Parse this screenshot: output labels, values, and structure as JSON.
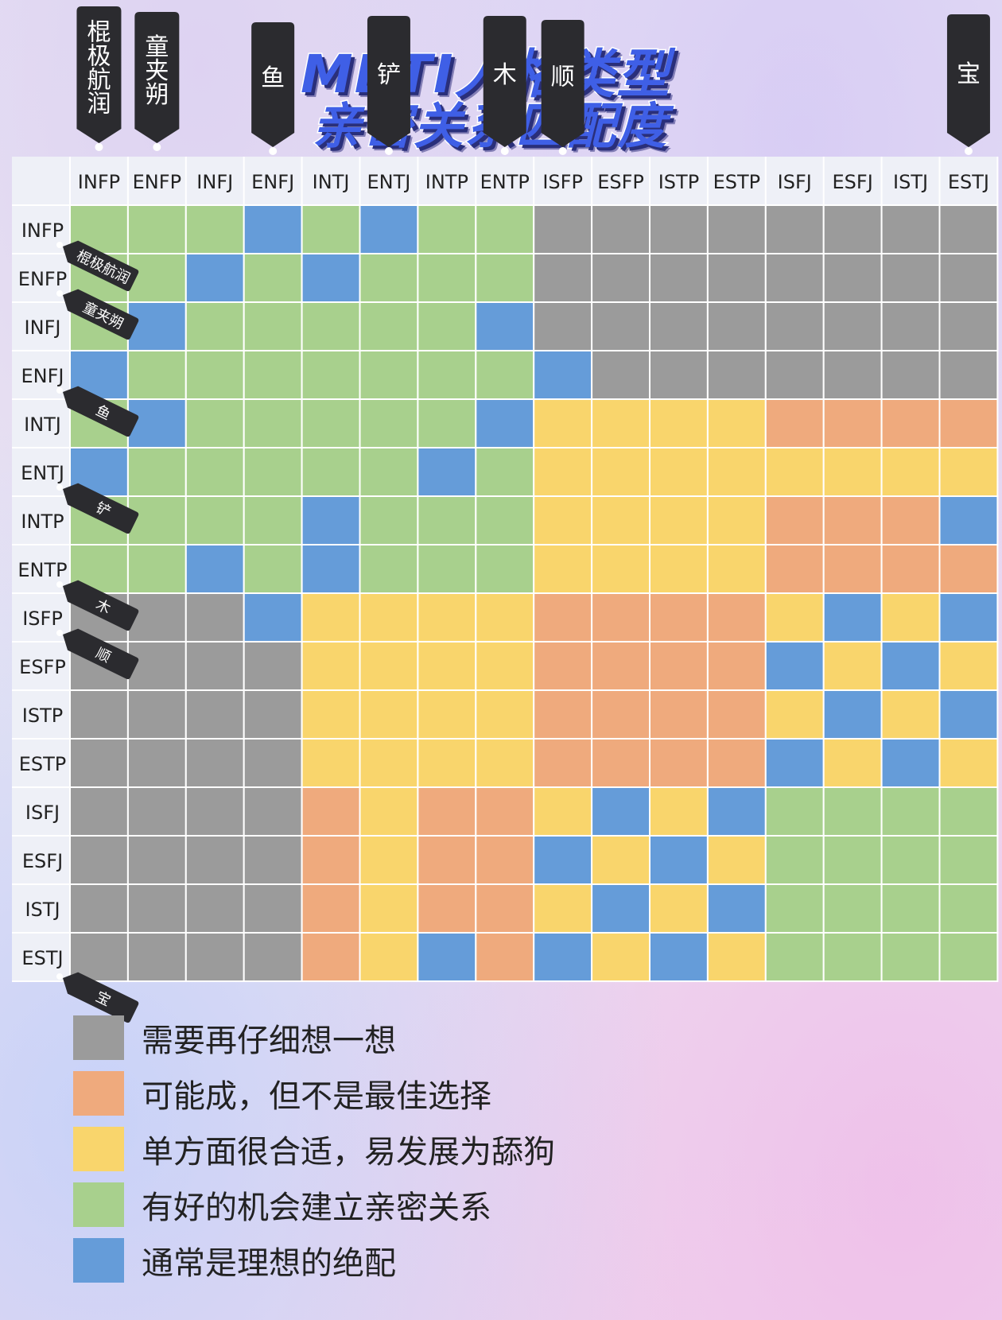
{
  "title": {
    "line1": "MBTI人格类型",
    "line2": "亲密关系匹配度"
  },
  "colors": {
    "G": "#9b9b9b",
    "O": "#efaa7d",
    "Y": "#f9d56c",
    "N": "#a8d08d",
    "B": "#659cd9"
  },
  "chart_data": {
    "type": "heatmap",
    "columns": [
      "INFP",
      "ENFP",
      "INFJ",
      "ENFJ",
      "INTJ",
      "ENTJ",
      "INTP",
      "ENTP",
      "ISFP",
      "ESFP",
      "ISTP",
      "ESTP",
      "ISFJ",
      "ESFJ",
      "ISTJ",
      "ESTJ"
    ],
    "rows": [
      "INFP",
      "ENFP",
      "INFJ",
      "ENFJ",
      "INTJ",
      "ENTJ",
      "INTP",
      "ENTP",
      "ISFP",
      "ESFP",
      "ISTP",
      "ESTP",
      "ISFJ",
      "ESFJ",
      "ISTJ",
      "ESTJ"
    ],
    "cells": [
      "NNNBNBNNGGGGGGGG",
      "NNBNBNNNGGGGGGGG",
      "NBNNNNNBGGGGGGGG",
      "BNNNNNNNBGGGGGGG",
      "NBNNNNNBYYYYOOOO",
      "BNNNNNBNYYYYYYYY",
      "NNNNBNNNYYYYOOOB",
      "NNBNBNNNYYYYOOOO",
      "GGGBYYYYOOOOYBYB",
      "GGGGYYYYOOOOBYBY",
      "GGGGYYYYOOOOYBYB",
      "GGGGYYYYOOOOBYBY",
      "GGGGOYOOYBYBNNNN",
      "GGGGOYOOBYBYNNNN",
      "GGGGOYOOYBYBNNNN",
      "GGGGOYBOBYBYNNNN"
    ],
    "legend": [
      {
        "code": "G",
        "label": "需要再仔细想一想"
      },
      {
        "code": "O",
        "label": "可能成，但不是最佳选择"
      },
      {
        "code": "Y",
        "label": "单方面很合适，易发展为舔狗"
      },
      {
        "code": "N",
        "label": "有好的机会建立亲密关系"
      },
      {
        "code": "B",
        "label": "通常是理想的绝配"
      }
    ]
  },
  "annotations": {
    "column_tags": [
      {
        "col": 0,
        "text": "棍极航润"
      },
      {
        "col": 1,
        "text": "童夹朔"
      },
      {
        "col": 3,
        "text": "鱼"
      },
      {
        "col": 5,
        "text": "铲"
      },
      {
        "col": 7,
        "text": "木"
      },
      {
        "col": 8,
        "text": "顺"
      },
      {
        "col": 15,
        "text": "宝"
      }
    ],
    "row_tags": [
      {
        "row": 0,
        "text": "棍极航润"
      },
      {
        "row": 1,
        "text": "童夹朔"
      },
      {
        "row": 3,
        "text": "鱼"
      },
      {
        "row": 5,
        "text": "铲"
      },
      {
        "row": 7,
        "text": "木"
      },
      {
        "row": 8,
        "text": "顺"
      },
      {
        "row": 15,
        "text": "宝"
      }
    ]
  }
}
